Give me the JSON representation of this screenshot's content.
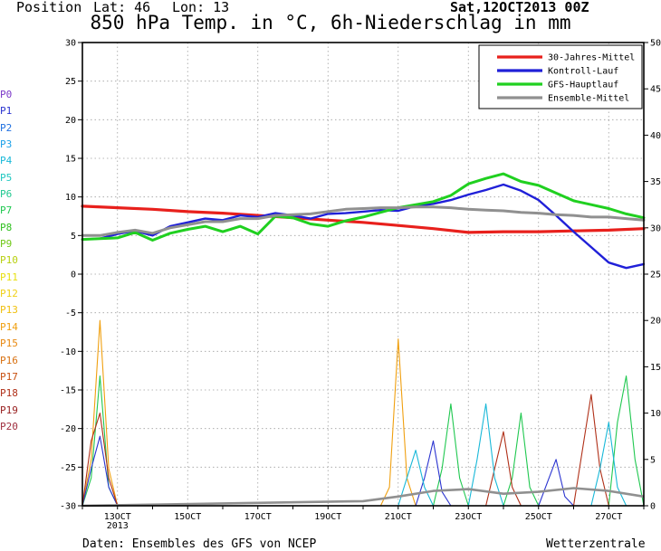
{
  "header": {
    "position_label": "Position",
    "lat": "Lat: 46",
    "lon": "Lon: 13",
    "date": "Sat,12OCT2013 00Z",
    "title": "850 hPa Temp. in °C, 6h-Niederschlag in mm"
  },
  "footer": {
    "source": "Daten: Ensembles des GFS von NCEP",
    "brand": "Wetterzentrale"
  },
  "members": [
    {
      "label": "P0",
      "color": "#7b38c8"
    },
    {
      "label": "P1",
      "color": "#2b34d0"
    },
    {
      "label": "P2",
      "color": "#2070e0"
    },
    {
      "label": "P3",
      "color": "#1aa0e8"
    },
    {
      "label": "P4",
      "color": "#18b8d8"
    },
    {
      "label": "P5",
      "color": "#20c8c0"
    },
    {
      "label": "P6",
      "color": "#20c890"
    },
    {
      "label": "P7",
      "color": "#20c850"
    },
    {
      "label": "P8",
      "color": "#30c020"
    },
    {
      "label": "P9",
      "color": "#70c818"
    },
    {
      "label": "P10",
      "color": "#b8d010"
    },
    {
      "label": "P11",
      "color": "#e8e010"
    },
    {
      "label": "P12",
      "color": "#f0d018"
    },
    {
      "label": "P13",
      "color": "#f0c010"
    },
    {
      "label": "P14",
      "color": "#f0a010"
    },
    {
      "label": "P15",
      "color": "#e88810"
    },
    {
      "label": "P16",
      "color": "#d87010"
    },
    {
      "label": "P17",
      "color": "#c85010"
    },
    {
      "label": "P18",
      "color": "#b03018"
    },
    {
      "label": "P19",
      "color": "#982020"
    },
    {
      "label": "P20",
      "color": "#a03040"
    }
  ],
  "chart_data": {
    "type": "line",
    "title": "850 hPa Temp. in °C, 6h-Niederschlag in mm",
    "xlabel": "",
    "ylabel": "",
    "x_ticks": [
      {
        "day": 13,
        "label": "13OCT",
        "sub": "2013"
      },
      {
        "day": 15,
        "label": "15OCT"
      },
      {
        "day": 17,
        "label": "17OCT"
      },
      {
        "day": 19,
        "label": "19OCT"
      },
      {
        "day": 21,
        "label": "21OCT"
      },
      {
        "day": 23,
        "label": "23OCT"
      },
      {
        "day": 25,
        "label": "25OCT"
      },
      {
        "day": 27,
        "label": "27OCT"
      }
    ],
    "xlim": [
      12.0,
      28.0
    ],
    "ylim_left": [
      -30,
      30
    ],
    "ylim_right": [
      0,
      50
    ],
    "left_ticks": [
      30,
      25,
      20,
      15,
      10,
      5,
      0,
      -5,
      -10,
      -15,
      -20,
      -25,
      -30
    ],
    "right_ticks": [
      50,
      45,
      40,
      35,
      30,
      25,
      20,
      15,
      10,
      5,
      0
    ],
    "grid": true,
    "legend_position": "top-right",
    "legend": [
      {
        "name": "30-Jahres-Mittel",
        "color": "#e8201c"
      },
      {
        "name": "Kontroll-Lauf",
        "color": "#2020d8"
      },
      {
        "name": "GFS-Hauptlauf",
        "color": "#20d020"
      },
      {
        "name": "Ensemble-Mittel",
        "color": "#909090"
      }
    ],
    "temperature_series": [
      {
        "key": "climate",
        "color": "#e8201c",
        "width": 3.2,
        "x": [
          12.0,
          13.0,
          14.0,
          15.0,
          16.0,
          17.0,
          18.0,
          19.0,
          20.0,
          21.0,
          22.0,
          23.0,
          24.0,
          25.0,
          26.0,
          27.0,
          28.0
        ],
        "y": [
          8.8,
          8.6,
          8.4,
          8.1,
          7.9,
          7.6,
          7.3,
          7.0,
          6.7,
          6.3,
          5.9,
          5.4,
          5.5,
          5.5,
          5.6,
          5.7,
          5.9
        ]
      },
      {
        "key": "control",
        "color": "#2020d8",
        "width": 2.4,
        "x": [
          12.0,
          12.5,
          13.0,
          13.5,
          14.0,
          14.5,
          15.0,
          15.5,
          16.0,
          16.5,
          17.0,
          17.5,
          18.0,
          18.5,
          19.0,
          19.5,
          20.0,
          20.5,
          21.0,
          21.5,
          22.0,
          22.5,
          23.0,
          23.5,
          24.0,
          24.5,
          25.0,
          25.5,
          26.0,
          26.5,
          27.0,
          27.5,
          28.0
        ],
        "y": [
          4.5,
          4.6,
          5.2,
          5.6,
          5.0,
          6.2,
          6.7,
          7.2,
          7.0,
          7.6,
          7.4,
          7.9,
          7.6,
          7.2,
          7.8,
          7.9,
          8.1,
          8.3,
          8.2,
          8.8,
          9.1,
          9.6,
          10.3,
          10.9,
          11.6,
          10.8,
          9.6,
          7.6,
          5.5,
          3.5,
          1.5,
          0.8,
          1.3
        ]
      },
      {
        "key": "gfs",
        "color": "#20d020",
        "width": 3.0,
        "x": [
          12.0,
          12.5,
          13.0,
          13.5,
          14.0,
          14.5,
          15.0,
          15.5,
          16.0,
          16.5,
          17.0,
          17.5,
          18.0,
          18.5,
          19.0,
          19.5,
          20.0,
          20.5,
          21.0,
          21.5,
          22.0,
          22.5,
          23.0,
          23.5,
          24.0,
          24.5,
          25.0,
          25.5,
          26.0,
          26.5,
          27.0,
          27.5,
          28.0
        ],
        "y": [
          4.5,
          4.6,
          4.7,
          5.4,
          4.4,
          5.3,
          5.8,
          6.2,
          5.5,
          6.2,
          5.2,
          7.5,
          7.3,
          6.5,
          6.2,
          6.9,
          7.4,
          8.0,
          8.6,
          9.0,
          9.4,
          10.2,
          11.7,
          12.4,
          13.0,
          12.0,
          11.5,
          10.5,
          9.5,
          9.0,
          8.5,
          7.8,
          7.3
        ]
      },
      {
        "key": "mean",
        "color": "#909090",
        "width": 3.0,
        "x": [
          12.0,
          12.5,
          13.0,
          13.5,
          14.0,
          14.5,
          15.0,
          15.5,
          16.0,
          16.5,
          17.0,
          17.5,
          18.0,
          18.5,
          19.0,
          19.5,
          20.0,
          20.5,
          21.0,
          21.5,
          22.0,
          22.5,
          23.0,
          23.5,
          24.0,
          24.5,
          25.0,
          25.5,
          26.0,
          26.5,
          27.0,
          27.5,
          28.0
        ],
        "y": [
          5.0,
          5.0,
          5.4,
          5.7,
          5.3,
          6.0,
          6.4,
          6.8,
          6.8,
          7.2,
          7.2,
          7.6,
          7.7,
          7.8,
          8.1,
          8.4,
          8.5,
          8.6,
          8.6,
          8.7,
          8.7,
          8.6,
          8.4,
          8.3,
          8.2,
          8.0,
          7.9,
          7.7,
          7.6,
          7.4,
          7.4,
          7.2,
          7.0
        ]
      }
    ],
    "precip_series": [
      {
        "key": "p14",
        "color": "#f0a010",
        "x": [
          12.0,
          12.25,
          12.5,
          12.75,
          13.0,
          19.0,
          20.5,
          20.75,
          21.0,
          21.25,
          21.5,
          22.0,
          28.0
        ],
        "y": [
          0,
          5.0,
          20.0,
          4.0,
          0,
          0,
          0,
          2.0,
          18.0,
          3.0,
          0,
          0,
          0
        ]
      },
      {
        "key": "p8",
        "color": "#20c850",
        "x": [
          12.0,
          12.25,
          12.5,
          12.75,
          13.0,
          22.0,
          22.25,
          22.5,
          22.75,
          23.0,
          24.0,
          24.25,
          24.5,
          24.75,
          25.0,
          27.0,
          27.25,
          27.5,
          27.75,
          28.0
        ],
        "y": [
          0,
          3.0,
          14.0,
          2.0,
          0,
          0,
          4.0,
          11.0,
          3.0,
          0,
          0,
          3.0,
          10.0,
          2.0,
          0,
          0,
          9.0,
          14.0,
          5.0,
          0
        ]
      },
      {
        "key": "p1",
        "color": "#2b34d0",
        "x": [
          12.0,
          12.25,
          12.5,
          12.75,
          13.0,
          21.5,
          21.75,
          22.0,
          22.25,
          22.5,
          25.0,
          25.25,
          25.5,
          25.75,
          26.0
        ],
        "y": [
          0,
          4.0,
          7.5,
          2.0,
          0,
          0,
          3.0,
          7.0,
          1.5,
          0,
          0,
          2.5,
          5.0,
          1.0,
          0
        ]
      },
      {
        "key": "p18",
        "color": "#b03018",
        "x": [
          12.0,
          12.25,
          12.5,
          12.75,
          13.0,
          23.5,
          23.75,
          24.0,
          24.25,
          24.5,
          26.0,
          26.25,
          26.5,
          26.75,
          27.0
        ],
        "y": [
          0,
          7.0,
          10.0,
          3.0,
          0,
          0,
          4.0,
          8.0,
          2.0,
          0,
          0,
          6.0,
          12.0,
          4.0,
          0
        ]
      },
      {
        "key": "p4",
        "color": "#18b8d8",
        "x": [
          12.0,
          21.0,
          21.25,
          21.5,
          21.75,
          22.0,
          23.0,
          23.25,
          23.5,
          23.75,
          24.0,
          26.5,
          26.75,
          27.0,
          27.25,
          27.5
        ],
        "y": [
          0,
          0,
          3.0,
          6.0,
          2.0,
          0,
          0,
          5.0,
          11.0,
          3.0,
          0,
          0,
          4.0,
          9.0,
          2.0,
          0
        ]
      },
      {
        "key": "mean",
        "color": "#909090",
        "x": [
          12.0,
          20.0,
          21.0,
          22.0,
          23.0,
          24.0,
          25.0,
          26.0,
          27.0,
          28.0
        ],
        "y": [
          0,
          0.5,
          1.0,
          1.6,
          1.8,
          1.3,
          1.5,
          1.9,
          1.6,
          1.0
        ]
      }
    ]
  }
}
